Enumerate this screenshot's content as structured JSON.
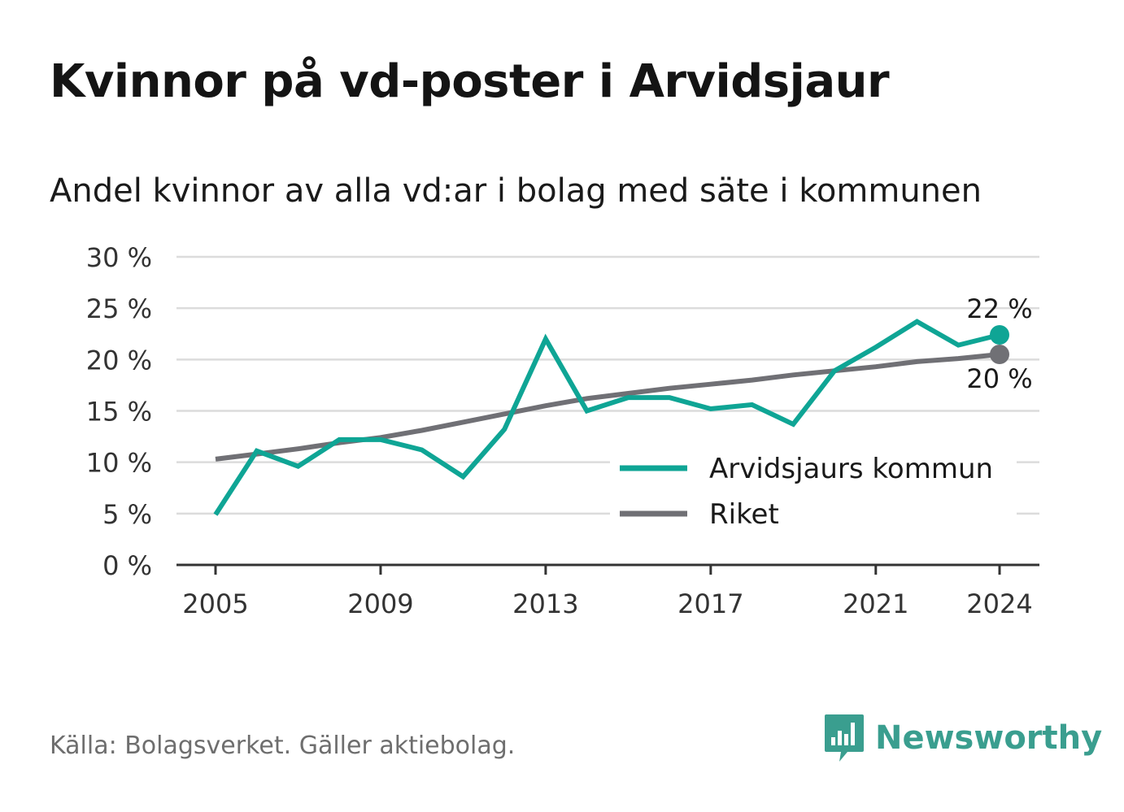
{
  "header": {
    "title": "Kvinnor på vd-poster i Arvidsjaur",
    "subtitle": "Andel kvinnor av alla vd:ar i bolag med säte i kommunen"
  },
  "footer": {
    "source": "Källa: Bolagsverket. Gäller aktiebolag.",
    "brand": "Newsworthy",
    "brand_icon": "bar-chart-speech-bubble-icon"
  },
  "colors": {
    "arvidsjaur": "#0fa595",
    "riket": "#707075",
    "grid": "#dcdcdc",
    "axis": "#333333",
    "brand": "#3a9e8f"
  },
  "chart_data": {
    "type": "line",
    "title": "Kvinnor på vd-poster i Arvidsjaur",
    "subtitle": "Andel kvinnor av alla vd:ar i bolag med säte i kommunen",
    "xlabel": "",
    "ylabel": "",
    "x": [
      2005,
      2006,
      2007,
      2008,
      2009,
      2010,
      2011,
      2012,
      2013,
      2014,
      2015,
      2016,
      2017,
      2018,
      2019,
      2020,
      2021,
      2022,
      2023,
      2024
    ],
    "x_ticks": [
      2005,
      2009,
      2013,
      2017,
      2021,
      2024
    ],
    "ylim": [
      0,
      30
    ],
    "y_ticks": [
      0,
      5,
      10,
      15,
      20,
      25,
      30
    ],
    "y_tick_labels": [
      "0 %",
      "5 %",
      "10 %",
      "15 %",
      "20 %",
      "25 %",
      "30 %"
    ],
    "grid": true,
    "legend_position": "bottom-right",
    "series": [
      {
        "name": "Arvidsjaurs kommun",
        "color": "#0fa595",
        "values": [
          4.9,
          11.1,
          9.6,
          12.2,
          12.2,
          11.2,
          8.6,
          13.2,
          22.0,
          15.0,
          16.3,
          16.3,
          15.2,
          15.6,
          13.7,
          18.9,
          21.2,
          23.7,
          21.4,
          22.4
        ],
        "end_label": "22 %"
      },
      {
        "name": "Riket",
        "color": "#707075",
        "values": [
          10.3,
          10.8,
          11.3,
          11.9,
          12.4,
          13.1,
          13.9,
          14.7,
          15.5,
          16.2,
          16.7,
          17.2,
          17.6,
          18.0,
          18.5,
          18.9,
          19.3,
          19.8,
          20.1,
          20.5
        ],
        "end_label": "20 %"
      }
    ]
  }
}
